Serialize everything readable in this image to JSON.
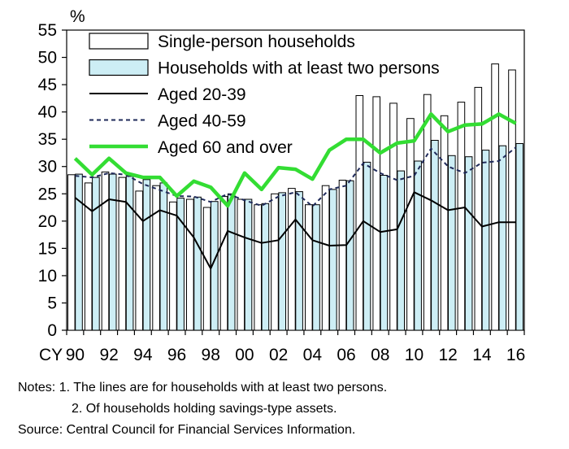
{
  "chart_data": {
    "type": "bar",
    "title": "",
    "unit_label": "%",
    "x_prefix": "CY",
    "ylim": [
      0,
      55
    ],
    "yticks": [
      0,
      5,
      10,
      15,
      20,
      25,
      30,
      35,
      40,
      45,
      50,
      55
    ],
    "x": [
      1990,
      1991,
      1992,
      1993,
      1994,
      1995,
      1996,
      1997,
      1998,
      1999,
      2000,
      2001,
      2002,
      2003,
      2004,
      2005,
      2006,
      2007,
      2008,
      2009,
      2010,
      2011,
      2012,
      2013,
      2014,
      2015,
      2016
    ],
    "xtick_labels": [
      "90",
      "92",
      "94",
      "96",
      "98",
      "00",
      "02",
      "04",
      "06",
      "08",
      "10",
      "12",
      "14",
      "16"
    ],
    "series": [
      {
        "name": "Single-person households",
        "kind": "bar",
        "values": [
          28.5,
          27.0,
          29.0,
          28.0,
          25.5,
          26.5,
          23.5,
          24.0,
          22.5,
          24.5,
          24.0,
          23.0,
          25.0,
          26.0,
          23.0,
          26.5,
          27.5,
          43.0,
          42.8,
          41.6,
          38.8,
          43.2,
          39.3,
          41.8,
          44.5,
          48.8,
          47.7
        ]
      },
      {
        "name": "Households with at least two persons",
        "kind": "bar",
        "values": [
          28.6,
          28.0,
          28.6,
          28.2,
          27.6,
          27.0,
          24.2,
          24.4,
          23.6,
          25.0,
          24.0,
          23.2,
          25.2,
          25.4,
          23.0,
          25.8,
          27.4,
          30.8,
          28.4,
          29.2,
          31.0,
          34.8,
          32.0,
          31.8,
          33.0,
          33.8,
          34.2
        ]
      },
      {
        "name": "Aged 20-39",
        "kind": "line",
        "color": "#000000",
        "values": [
          24.3,
          21.8,
          24.0,
          23.5,
          20.0,
          22.0,
          21.0,
          17.0,
          11.3,
          18.2,
          17.0,
          16.0,
          16.5,
          20.3,
          16.5,
          15.5,
          15.6,
          20.0,
          18.0,
          18.5,
          25.3,
          23.8,
          22.0,
          22.5,
          19.0,
          19.8,
          19.8
        ]
      },
      {
        "name": "Aged 40-59",
        "kind": "line",
        "color": "#1f2a5a",
        "values": [
          28.3,
          28.0,
          28.8,
          28.5,
          26.8,
          25.7,
          24.6,
          24.5,
          23.5,
          25.0,
          23.8,
          22.8,
          24.5,
          25.3,
          22.7,
          25.8,
          26.5,
          30.6,
          28.8,
          27.5,
          28.3,
          33.3,
          30.0,
          28.8,
          30.7,
          31.0,
          33.5
        ]
      },
      {
        "name": "Aged 60 and over",
        "kind": "line",
        "color": "#33dd33",
        "values": [
          31.5,
          28.5,
          31.5,
          28.8,
          28.0,
          28.0,
          24.6,
          27.3,
          26.2,
          22.8,
          28.8,
          25.8,
          29.8,
          29.5,
          27.7,
          33.0,
          35.0,
          35.0,
          32.5,
          34.3,
          34.7,
          39.6,
          36.4,
          37.6,
          37.8,
          39.6,
          37.9
        ]
      }
    ]
  },
  "notes": [
    "Notes: 1. The lines are for households with at least two persons.",
    "2. Of households holding savings-type assets.",
    "Source: Central Council for Financial Services Information."
  ]
}
